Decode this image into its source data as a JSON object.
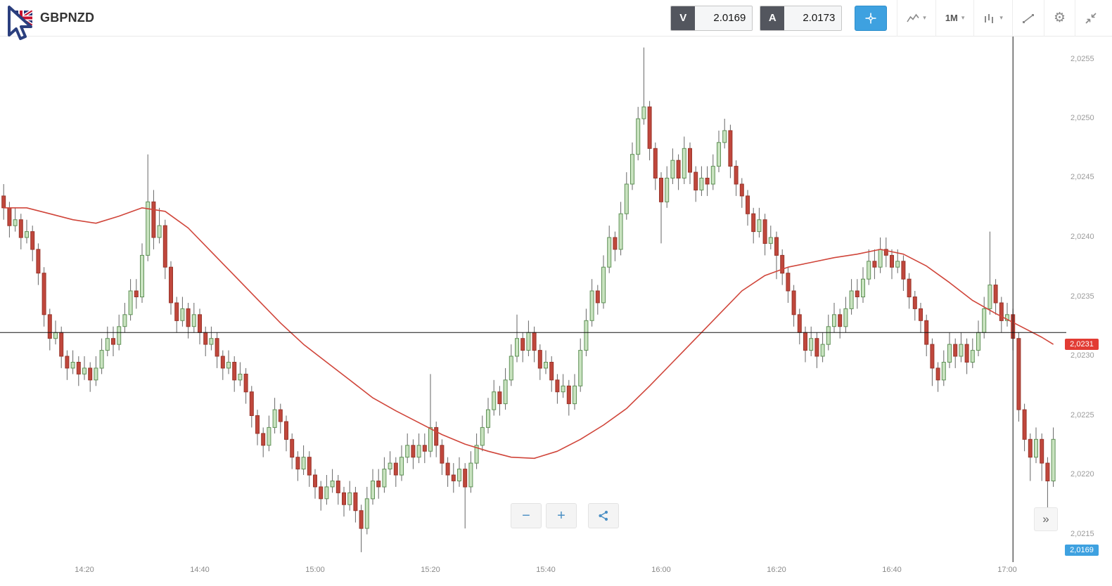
{
  "header": {
    "instrument": "GBPNZD",
    "sell_button": {
      "label": "V",
      "price": "2.0169"
    },
    "buy_button": {
      "label": "A",
      "price": "2.0173"
    },
    "caret": "▾",
    "tools": {
      "crosshair": {
        "name": "crosshair",
        "active": true
      },
      "chart_type": {
        "name": "chart-type"
      },
      "timeframe": {
        "label": "1M"
      },
      "indicators": {
        "name": "indicators"
      },
      "drawing": {
        "name": "trend-line"
      },
      "settings": {
        "name": "settings",
        "glyph": "⚙"
      },
      "collapse": {
        "name": "collapse"
      }
    }
  },
  "axis_tags": {
    "indicator_value": "2,0231",
    "current_price": "2,0169"
  },
  "footer_controls": {
    "zoom_out": "−",
    "zoom_in": "+",
    "share": "share",
    "expand": "»"
  },
  "chart_data": {
    "type": "candlestick",
    "symbol": "GBPNZD",
    "timeframe": "1M",
    "start_time": "14:06",
    "interval_minutes": 1,
    "x_ticks": [
      "14:20",
      "14:40",
      "15:00",
      "15:20",
      "15:40",
      "16:00",
      "16:20",
      "16:40",
      "17:00"
    ],
    "y_ticks": [
      "2,0255",
      "2,0250",
      "2,0245",
      "2,0240",
      "2,0235",
      "2,0230",
      "2,0225",
      "2,0220",
      "2,0215"
    ],
    "y_range": [
      2.0213,
      2.0257
    ],
    "current_price": 2.0169,
    "crosshair": {
      "time": "17:01",
      "price": 2.0232
    },
    "colors": {
      "up_fill": "#c9e3c0",
      "up_stroke": "#5f9156",
      "down_fill": "#c0473c",
      "down_stroke": "#99352b",
      "wick": "#666666",
      "crosshair": "#111111",
      "ma": "#d0453a",
      "tag_indicator_bg": "#e23c34",
      "tag_price_bg": "#3ea1e0",
      "accent_blue": "#3ea1e0"
    },
    "ma_line": {
      "color": "#d0453a",
      "points": [
        [
          0,
          2.02425
        ],
        [
          4,
          2.02425
        ],
        [
          8,
          2.0242
        ],
        [
          12,
          2.02415
        ],
        [
          16,
          2.02412
        ],
        [
          20,
          2.02418
        ],
        [
          24,
          2.02425
        ],
        [
          28,
          2.02422
        ],
        [
          32,
          2.02408
        ],
        [
          36,
          2.02388
        ],
        [
          40,
          2.02368
        ],
        [
          44,
          2.02348
        ],
        [
          48,
          2.02328
        ],
        [
          52,
          2.0231
        ],
        [
          56,
          2.02295
        ],
        [
          60,
          2.0228
        ],
        [
          64,
          2.02265
        ],
        [
          68,
          2.02254
        ],
        [
          72,
          2.02244
        ],
        [
          76,
          2.02234
        ],
        [
          80,
          2.02226
        ],
        [
          84,
          2.0222
        ],
        [
          88,
          2.02215
        ],
        [
          92,
          2.02214
        ],
        [
          96,
          2.0222
        ],
        [
          100,
          2.0223
        ],
        [
          104,
          2.02242
        ],
        [
          108,
          2.02256
        ],
        [
          112,
          2.02275
        ],
        [
          116,
          2.02295
        ],
        [
          120,
          2.02315
        ],
        [
          124,
          2.02335
        ],
        [
          128,
          2.02355
        ],
        [
          132,
          2.02368
        ],
        [
          136,
          2.02375
        ],
        [
          140,
          2.02379
        ],
        [
          144,
          2.02383
        ],
        [
          148,
          2.02386
        ],
        [
          152,
          2.0239
        ],
        [
          156,
          2.02386
        ],
        [
          160,
          2.02376
        ],
        [
          164,
          2.02362
        ],
        [
          168,
          2.02347
        ],
        [
          172,
          2.02336
        ],
        [
          176,
          2.02326
        ],
        [
          180,
          2.02316
        ],
        [
          182,
          2.0231
        ]
      ]
    },
    "candles": [
      [
        2.02435,
        2.02445,
        2.02415,
        2.02425
      ],
      [
        2.02425,
        2.0243,
        2.024,
        2.0241
      ],
      [
        2.0241,
        2.02425,
        2.02405,
        2.02415
      ],
      [
        2.02415,
        2.0242,
        2.0239,
        2.024
      ],
      [
        2.024,
        2.02415,
        2.02395,
        2.02405
      ],
      [
        2.02405,
        2.0241,
        2.0238,
        2.0239
      ],
      [
        2.0239,
        2.02395,
        2.0236,
        2.0237
      ],
      [
        2.0237,
        2.02375,
        2.02325,
        2.02335
      ],
      [
        2.02335,
        2.0234,
        2.02305,
        2.02315
      ],
      [
        2.02315,
        2.0233,
        2.0231,
        2.0232
      ],
      [
        2.0232,
        2.02325,
        2.0229,
        2.023
      ],
      [
        2.023,
        2.02305,
        2.0228,
        2.0229
      ],
      [
        2.0229,
        2.02305,
        2.02285,
        2.02295
      ],
      [
        2.02295,
        2.023,
        2.02275,
        2.02285
      ],
      [
        2.02285,
        2.023,
        2.0228,
        2.0229
      ],
      [
        2.0229,
        2.02295,
        2.0227,
        2.0228
      ],
      [
        2.0228,
        2.023,
        2.02275,
        2.0229
      ],
      [
        2.0229,
        2.02315,
        2.02285,
        2.02305
      ],
      [
        2.02305,
        2.02325,
        2.023,
        2.02315
      ],
      [
        2.02315,
        2.02325,
        2.023,
        2.0231
      ],
      [
        2.0231,
        2.02335,
        2.02305,
        2.02325
      ],
      [
        2.02325,
        2.02345,
        2.0232,
        2.02335
      ],
      [
        2.02335,
        2.02365,
        2.0233,
        2.02355
      ],
      [
        2.02355,
        2.02365,
        2.0234,
        2.0235
      ],
      [
        2.0235,
        2.02395,
        2.02345,
        2.02385
      ],
      [
        2.02385,
        2.0247,
        2.0238,
        2.0243
      ],
      [
        2.0243,
        2.0244,
        2.0239,
        2.024
      ],
      [
        2.024,
        2.02425,
        2.02395,
        2.0241
      ],
      [
        2.0241,
        2.02415,
        2.02365,
        2.02375
      ],
      [
        2.02375,
        2.0238,
        2.02335,
        2.02345
      ],
      [
        2.02345,
        2.0235,
        2.0232,
        2.0233
      ],
      [
        2.0233,
        2.0235,
        2.02325,
        2.0234
      ],
      [
        2.0234,
        2.02345,
        2.02315,
        2.02325
      ],
      [
        2.02325,
        2.02345,
        2.0232,
        2.02335
      ],
      [
        2.02335,
        2.0234,
        2.0231,
        2.0232
      ],
      [
        2.0232,
        2.02325,
        2.023,
        2.0231
      ],
      [
        2.0231,
        2.02325,
        2.02305,
        2.02315
      ],
      [
        2.02315,
        2.0232,
        2.0229,
        2.023
      ],
      [
        2.023,
        2.02305,
        2.0228,
        2.0229
      ],
      [
        2.0229,
        2.02305,
        2.02285,
        2.02295
      ],
      [
        2.02295,
        2.023,
        2.0227,
        2.0228
      ],
      [
        2.0228,
        2.02295,
        2.02275,
        2.02285
      ],
      [
        2.02285,
        2.0229,
        2.0226,
        2.0227
      ],
      [
        2.0227,
        2.02275,
        2.0224,
        2.0225
      ],
      [
        2.0225,
        2.02255,
        2.02225,
        2.02235
      ],
      [
        2.02235,
        2.0224,
        2.02215,
        2.02225
      ],
      [
        2.02225,
        2.0225,
        2.0222,
        2.0224
      ],
      [
        2.0224,
        2.02265,
        2.02235,
        2.02255
      ],
      [
        2.02255,
        2.0226,
        2.02235,
        2.02245
      ],
      [
        2.02245,
        2.0225,
        2.0222,
        2.0223
      ],
      [
        2.0223,
        2.02235,
        2.02205,
        2.02215
      ],
      [
        2.02215,
        2.0222,
        2.02195,
        2.02205
      ],
      [
        2.02205,
        2.02225,
        2.022,
        2.02215
      ],
      [
        2.02215,
        2.0222,
        2.0219,
        2.022
      ],
      [
        2.022,
        2.02205,
        2.0218,
        2.0219
      ],
      [
        2.0219,
        2.02195,
        2.0217,
        2.0218
      ],
      [
        2.0218,
        2.022,
        2.02175,
        2.0219
      ],
      [
        2.0219,
        2.02205,
        2.02185,
        2.02195
      ],
      [
        2.02195,
        2.022,
        2.02175,
        2.02185
      ],
      [
        2.02185,
        2.0219,
        2.02165,
        2.02175
      ],
      [
        2.02175,
        2.02195,
        2.0217,
        2.02185
      ],
      [
        2.02185,
        2.0219,
        2.0216,
        2.0217
      ],
      [
        2.0217,
        2.02175,
        2.02135,
        2.02155
      ],
      [
        2.02155,
        2.0219,
        2.0215,
        2.0218
      ],
      [
        2.0218,
        2.02205,
        2.02175,
        2.02195
      ],
      [
        2.02195,
        2.02205,
        2.0218,
        2.0219
      ],
      [
        2.0219,
        2.02215,
        2.02185,
        2.02205
      ],
      [
        2.02205,
        2.0222,
        2.022,
        2.0221
      ],
      [
        2.0221,
        2.02215,
        2.0219,
        2.022
      ],
      [
        2.022,
        2.02225,
        2.02195,
        2.02215
      ],
      [
        2.02215,
        2.02235,
        2.0221,
        2.02225
      ],
      [
        2.02225,
        2.0223,
        2.02205,
        2.02215
      ],
      [
        2.02215,
        2.02235,
        2.0221,
        2.02225
      ],
      [
        2.02225,
        2.02235,
        2.0221,
        2.0222
      ],
      [
        2.0222,
        2.02285,
        2.02215,
        2.0224
      ],
      [
        2.0224,
        2.02245,
        2.02215,
        2.02225
      ],
      [
        2.02225,
        2.0223,
        2.022,
        2.0221
      ],
      [
        2.0221,
        2.02215,
        2.0219,
        2.022
      ],
      [
        2.022,
        2.0221,
        2.02185,
        2.02195
      ],
      [
        2.02195,
        2.02215,
        2.0219,
        2.02205
      ],
      [
        2.02205,
        2.0221,
        2.02155,
        2.0219
      ],
      [
        2.0219,
        2.0222,
        2.02185,
        2.0221
      ],
      [
        2.0221,
        2.02235,
        2.02205,
        2.02225
      ],
      [
        2.02225,
        2.0225,
        2.0222,
        2.0224
      ],
      [
        2.0224,
        2.02265,
        2.02235,
        2.02255
      ],
      [
        2.02255,
        2.0228,
        2.0225,
        2.0227
      ],
      [
        2.0227,
        2.02275,
        2.0225,
        2.0226
      ],
      [
        2.0226,
        2.0229,
        2.02255,
        2.0228
      ],
      [
        2.0228,
        2.0231,
        2.02275,
        2.023
      ],
      [
        2.023,
        2.02335,
        2.02295,
        2.02315
      ],
      [
        2.02315,
        2.0232,
        2.02295,
        2.02305
      ],
      [
        2.02305,
        2.0233,
        2.023,
        2.0232
      ],
      [
        2.0232,
        2.02325,
        2.02295,
        2.02305
      ],
      [
        2.02305,
        2.0231,
        2.0228,
        2.0229
      ],
      [
        2.0229,
        2.02305,
        2.02285,
        2.02295
      ],
      [
        2.02295,
        2.023,
        2.0227,
        2.0228
      ],
      [
        2.0228,
        2.02285,
        2.0226,
        2.0227
      ],
      [
        2.0227,
        2.02285,
        2.02265,
        2.02275
      ],
      [
        2.02275,
        2.0228,
        2.0225,
        2.0226
      ],
      [
        2.0226,
        2.02285,
        2.02255,
        2.02275
      ],
      [
        2.02275,
        2.02315,
        2.0227,
        2.02305
      ],
      [
        2.02305,
        2.0234,
        2.023,
        2.0233
      ],
      [
        2.0233,
        2.02365,
        2.02325,
        2.02355
      ],
      [
        2.02355,
        2.0236,
        2.02335,
        2.02345
      ],
      [
        2.02345,
        2.02385,
        2.0234,
        2.02375
      ],
      [
        2.02375,
        2.0241,
        2.0237,
        2.024
      ],
      [
        2.024,
        2.02405,
        2.0238,
        2.0239
      ],
      [
        2.0239,
        2.0243,
        2.02385,
        2.0242
      ],
      [
        2.0242,
        2.02455,
        2.02415,
        2.02445
      ],
      [
        2.02445,
        2.0248,
        2.0244,
        2.0247
      ],
      [
        2.0247,
        2.0251,
        2.02465,
        2.025
      ],
      [
        2.025,
        2.0256,
        2.02495,
        2.0251
      ],
      [
        2.0251,
        2.02515,
        2.02465,
        2.02475
      ],
      [
        2.02475,
        2.0248,
        2.0244,
        2.0245
      ],
      [
        2.0245,
        2.02455,
        2.02395,
        2.0243
      ],
      [
        2.0243,
        2.0246,
        2.02425,
        2.0245
      ],
      [
        2.0245,
        2.02475,
        2.02445,
        2.02465
      ],
      [
        2.02465,
        2.0247,
        2.0244,
        2.0245
      ],
      [
        2.0245,
        2.02485,
        2.02445,
        2.02475
      ],
      [
        2.02475,
        2.0248,
        2.02445,
        2.02455
      ],
      [
        2.02455,
        2.0246,
        2.0243,
        2.0244
      ],
      [
        2.0244,
        2.0246,
        2.02435,
        2.0245
      ],
      [
        2.0245,
        2.0246,
        2.02435,
        2.02445
      ],
      [
        2.02445,
        2.0247,
        2.0244,
        2.0246
      ],
      [
        2.0246,
        2.0249,
        2.02455,
        2.0248
      ],
      [
        2.0248,
        2.025,
        2.02475,
        2.0249
      ],
      [
        2.0249,
        2.02495,
        2.0245,
        2.0246
      ],
      [
        2.0246,
        2.02465,
        2.02435,
        2.02445
      ],
      [
        2.02445,
        2.0245,
        2.02425,
        2.02435
      ],
      [
        2.02435,
        2.0244,
        2.0241,
        2.0242
      ],
      [
        2.0242,
        2.02425,
        2.02395,
        2.02405
      ],
      [
        2.02405,
        2.02425,
        2.024,
        2.02415
      ],
      [
        2.02415,
        2.0242,
        2.02385,
        2.02395
      ],
      [
        2.02395,
        2.0241,
        2.0239,
        2.024
      ],
      [
        2.024,
        2.02405,
        2.02365,
        2.02385
      ],
      [
        2.02385,
        2.0239,
        2.0236,
        2.0237
      ],
      [
        2.0237,
        2.02375,
        2.02345,
        2.02355
      ],
      [
        2.02355,
        2.0236,
        2.02325,
        2.02335
      ],
      [
        2.02335,
        2.0234,
        2.0231,
        2.0232
      ],
      [
        2.0232,
        2.02325,
        2.02295,
        2.02305
      ],
      [
        2.02305,
        2.02325,
        2.023,
        2.02315
      ],
      [
        2.02315,
        2.0232,
        2.0229,
        2.023
      ],
      [
        2.023,
        2.0232,
        2.02295,
        2.0231
      ],
      [
        2.0231,
        2.02335,
        2.02305,
        2.02325
      ],
      [
        2.02325,
        2.02345,
        2.0232,
        2.02335
      ],
      [
        2.02335,
        2.0234,
        2.02315,
        2.02325
      ],
      [
        2.02325,
        2.0235,
        2.0232,
        2.0234
      ],
      [
        2.0234,
        2.02365,
        2.02335,
        2.02355
      ],
      [
        2.02355,
        2.02365,
        2.0234,
        2.0235
      ],
      [
        2.0235,
        2.02375,
        2.02345,
        2.02365
      ],
      [
        2.02365,
        2.0239,
        2.0236,
        2.0238
      ],
      [
        2.0238,
        2.0239,
        2.02365,
        2.02375
      ],
      [
        2.02375,
        2.024,
        2.0237,
        2.0239
      ],
      [
        2.0239,
        2.024,
        2.02375,
        2.02385
      ],
      [
        2.02385,
        2.0239,
        2.02365,
        2.02375
      ],
      [
        2.02375,
        2.0239,
        2.0237,
        2.0238
      ],
      [
        2.0238,
        2.02385,
        2.02355,
        2.02365
      ],
      [
        2.02365,
        2.0237,
        2.0234,
        2.0235
      ],
      [
        2.0235,
        2.02355,
        2.0233,
        2.0234
      ],
      [
        2.0234,
        2.02345,
        2.0232,
        2.0233
      ],
      [
        2.0233,
        2.02335,
        2.023,
        2.0231
      ],
      [
        2.0231,
        2.02315,
        2.02275,
        2.0229
      ],
      [
        2.0229,
        2.02295,
        2.0227,
        2.0228
      ],
      [
        2.0228,
        2.02305,
        2.02275,
        2.02295
      ],
      [
        2.02295,
        2.0232,
        2.0229,
        2.0231
      ],
      [
        2.0231,
        2.02315,
        2.0229,
        2.023
      ],
      [
        2.023,
        2.0232,
        2.02295,
        2.0231
      ],
      [
        2.0231,
        2.02315,
        2.02285,
        2.02295
      ],
      [
        2.02295,
        2.02315,
        2.0229,
        2.02305
      ],
      [
        2.02305,
        2.0233,
        2.023,
        2.0232
      ],
      [
        2.0232,
        2.0235,
        2.02315,
        2.0234
      ],
      [
        2.0234,
        2.02405,
        2.02335,
        2.0236
      ],
      [
        2.0236,
        2.02365,
        2.02335,
        2.02345
      ],
      [
        2.02345,
        2.0235,
        2.0232,
        2.0233
      ],
      [
        2.0233,
        2.02345,
        2.02325,
        2.02335
      ],
      [
        2.02335,
        2.0234,
        2.02305,
        2.02315
      ],
      [
        2.02315,
        2.0232,
        2.02245,
        2.02255
      ],
      [
        2.02255,
        2.0226,
        2.0222,
        2.0223
      ],
      [
        2.0223,
        2.02235,
        2.02195,
        2.02215
      ],
      [
        2.02215,
        2.0224,
        2.0221,
        2.0223
      ],
      [
        2.0223,
        2.02235,
        2.02195,
        2.0221
      ],
      [
        2.0221,
        2.02215,
        2.0217,
        2.02195
      ],
      [
        2.02195,
        2.0224,
        2.0219,
        2.0223
      ]
    ]
  }
}
